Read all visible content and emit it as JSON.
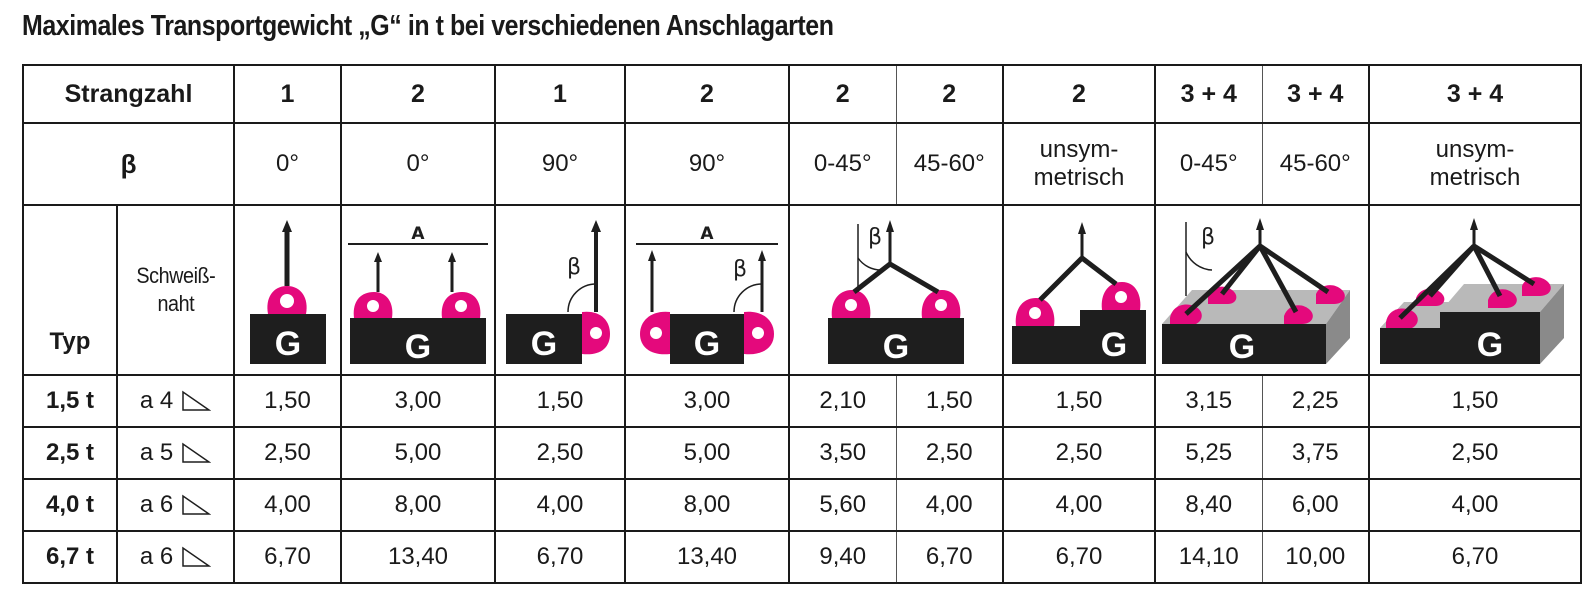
{
  "title": "Maximales Transportgewicht „G“ in t bei verschiedenen Anschlagarten",
  "header": {
    "strangzahl_label": "Strangzahl",
    "beta_label": "β",
    "typ_label": "Typ",
    "schweiss_label_1": "Schweiß-",
    "schweiss_label_2": "naht",
    "strangzahl": [
      "1",
      "2",
      "1",
      "2",
      "2",
      "2",
      "2",
      "3 + 4",
      "3 + 4",
      "3 + 4"
    ],
    "beta": [
      "0°",
      "0°",
      "90°",
      "90°",
      "0-45°",
      "45-60°",
      "unsym-\nmetrisch",
      "0-45°",
      "45-60°",
      "unsym-\nmetrisch"
    ]
  },
  "diagram_labels": {
    "g": "G",
    "a": "A",
    "beta_symbol": "β"
  },
  "colors": {
    "magenta": "#e4097c",
    "block": "#1e1e1e",
    "grey_top": "#b9b9b9",
    "grey_side": "#8a8a8a"
  },
  "rows": [
    {
      "typ": "1,5 t",
      "weld": "a 4",
      "values": [
        "1,50",
        "3,00",
        "1,50",
        "3,00",
        "2,10",
        "1,50",
        "1,50",
        "3,15",
        "2,25",
        "1,50"
      ]
    },
    {
      "typ": "2,5 t",
      "weld": "a 5",
      "values": [
        "2,50",
        "5,00",
        "2,50",
        "5,00",
        "3,50",
        "2,50",
        "2,50",
        "5,25",
        "3,75",
        "2,50"
      ]
    },
    {
      "typ": "4,0 t",
      "weld": "a 6",
      "values": [
        "4,00",
        "8,00",
        "4,00",
        "8,00",
        "5,60",
        "4,00",
        "4,00",
        "8,40",
        "6,00",
        "4,00"
      ]
    },
    {
      "typ": "6,7 t",
      "weld": "a 6",
      "values": [
        "6,70",
        "13,40",
        "6,70",
        "13,40",
        "9,40",
        "6,70",
        "6,70",
        "14,10",
        "10,00",
        "6,70"
      ]
    }
  ]
}
